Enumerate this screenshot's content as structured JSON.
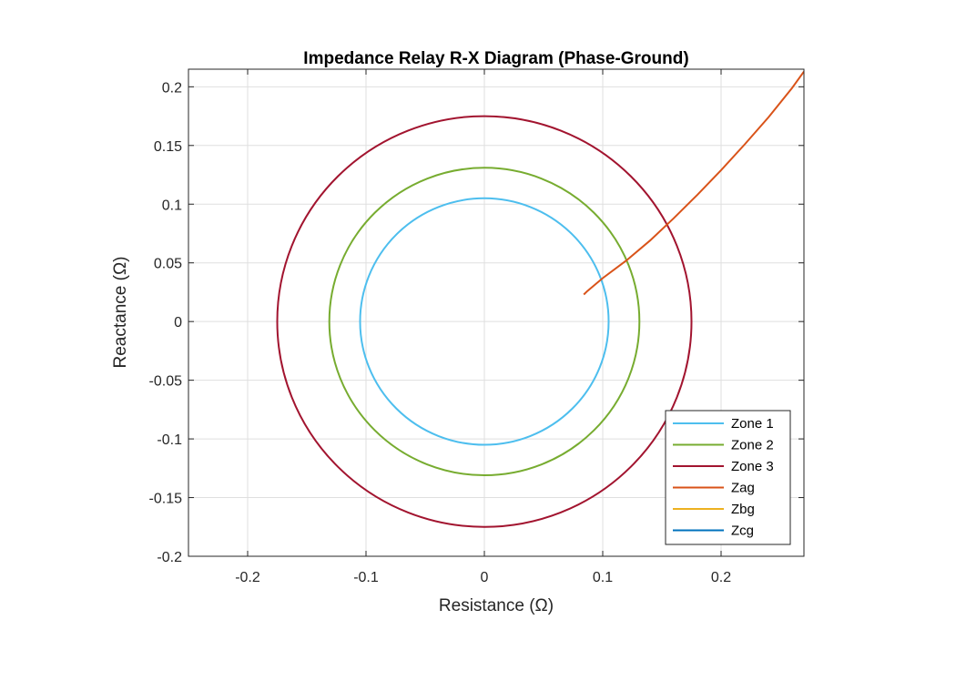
{
  "chart_data": {
    "type": "line",
    "title": "Impedance Relay R-X Diagram (Phase-Ground)",
    "xlabel": "Resistance (Ω)",
    "ylabel": "Reactance (Ω)",
    "xlim": [
      -0.25,
      0.27
    ],
    "ylim": [
      -0.2,
      0.215
    ],
    "xticks": [
      -0.2,
      -0.1,
      0,
      0.1,
      0.2
    ],
    "xtick_labels": [
      "-0.2",
      "-0.1",
      "0",
      "0.1",
      "0.2"
    ],
    "yticks": [
      -0.2,
      -0.15,
      -0.1,
      -0.05,
      0,
      0.05,
      0.1,
      0.15,
      0.2
    ],
    "ytick_labels": [
      "-0.2",
      "-0.15",
      "-0.1",
      "-0.05",
      "0",
      "0.05",
      "0.1",
      "0.15",
      "0.2"
    ],
    "grid": true,
    "legend_position": "bottom-right",
    "series": [
      {
        "name": "Zone 1",
        "kind": "circle",
        "center": [
          0,
          0
        ],
        "radius": 0.105,
        "color": "#4DBEEE"
      },
      {
        "name": "Zone 2",
        "kind": "circle",
        "center": [
          0,
          0
        ],
        "radius": 0.131,
        "color": "#77AC30"
      },
      {
        "name": "Zone 3",
        "kind": "circle",
        "center": [
          0,
          0
        ],
        "radius": 0.175,
        "color": "#A2142F"
      },
      {
        "name": "Zag",
        "kind": "line",
        "color": "#D95319",
        "x": [
          0.084,
          0.087,
          0.1,
          0.12,
          0.14,
          0.16,
          0.18,
          0.2,
          0.22,
          0.24,
          0.26,
          0.27
        ],
        "y": [
          0.023,
          0.026,
          0.037,
          0.052,
          0.069,
          0.088,
          0.108,
          0.129,
          0.151,
          0.174,
          0.199,
          0.213
        ]
      },
      {
        "name": "Zbg",
        "kind": "line",
        "color": "#EDB120",
        "x": [],
        "y": []
      },
      {
        "name": "Zcg",
        "kind": "line",
        "color": "#0072BD",
        "x": [],
        "y": []
      }
    ]
  }
}
